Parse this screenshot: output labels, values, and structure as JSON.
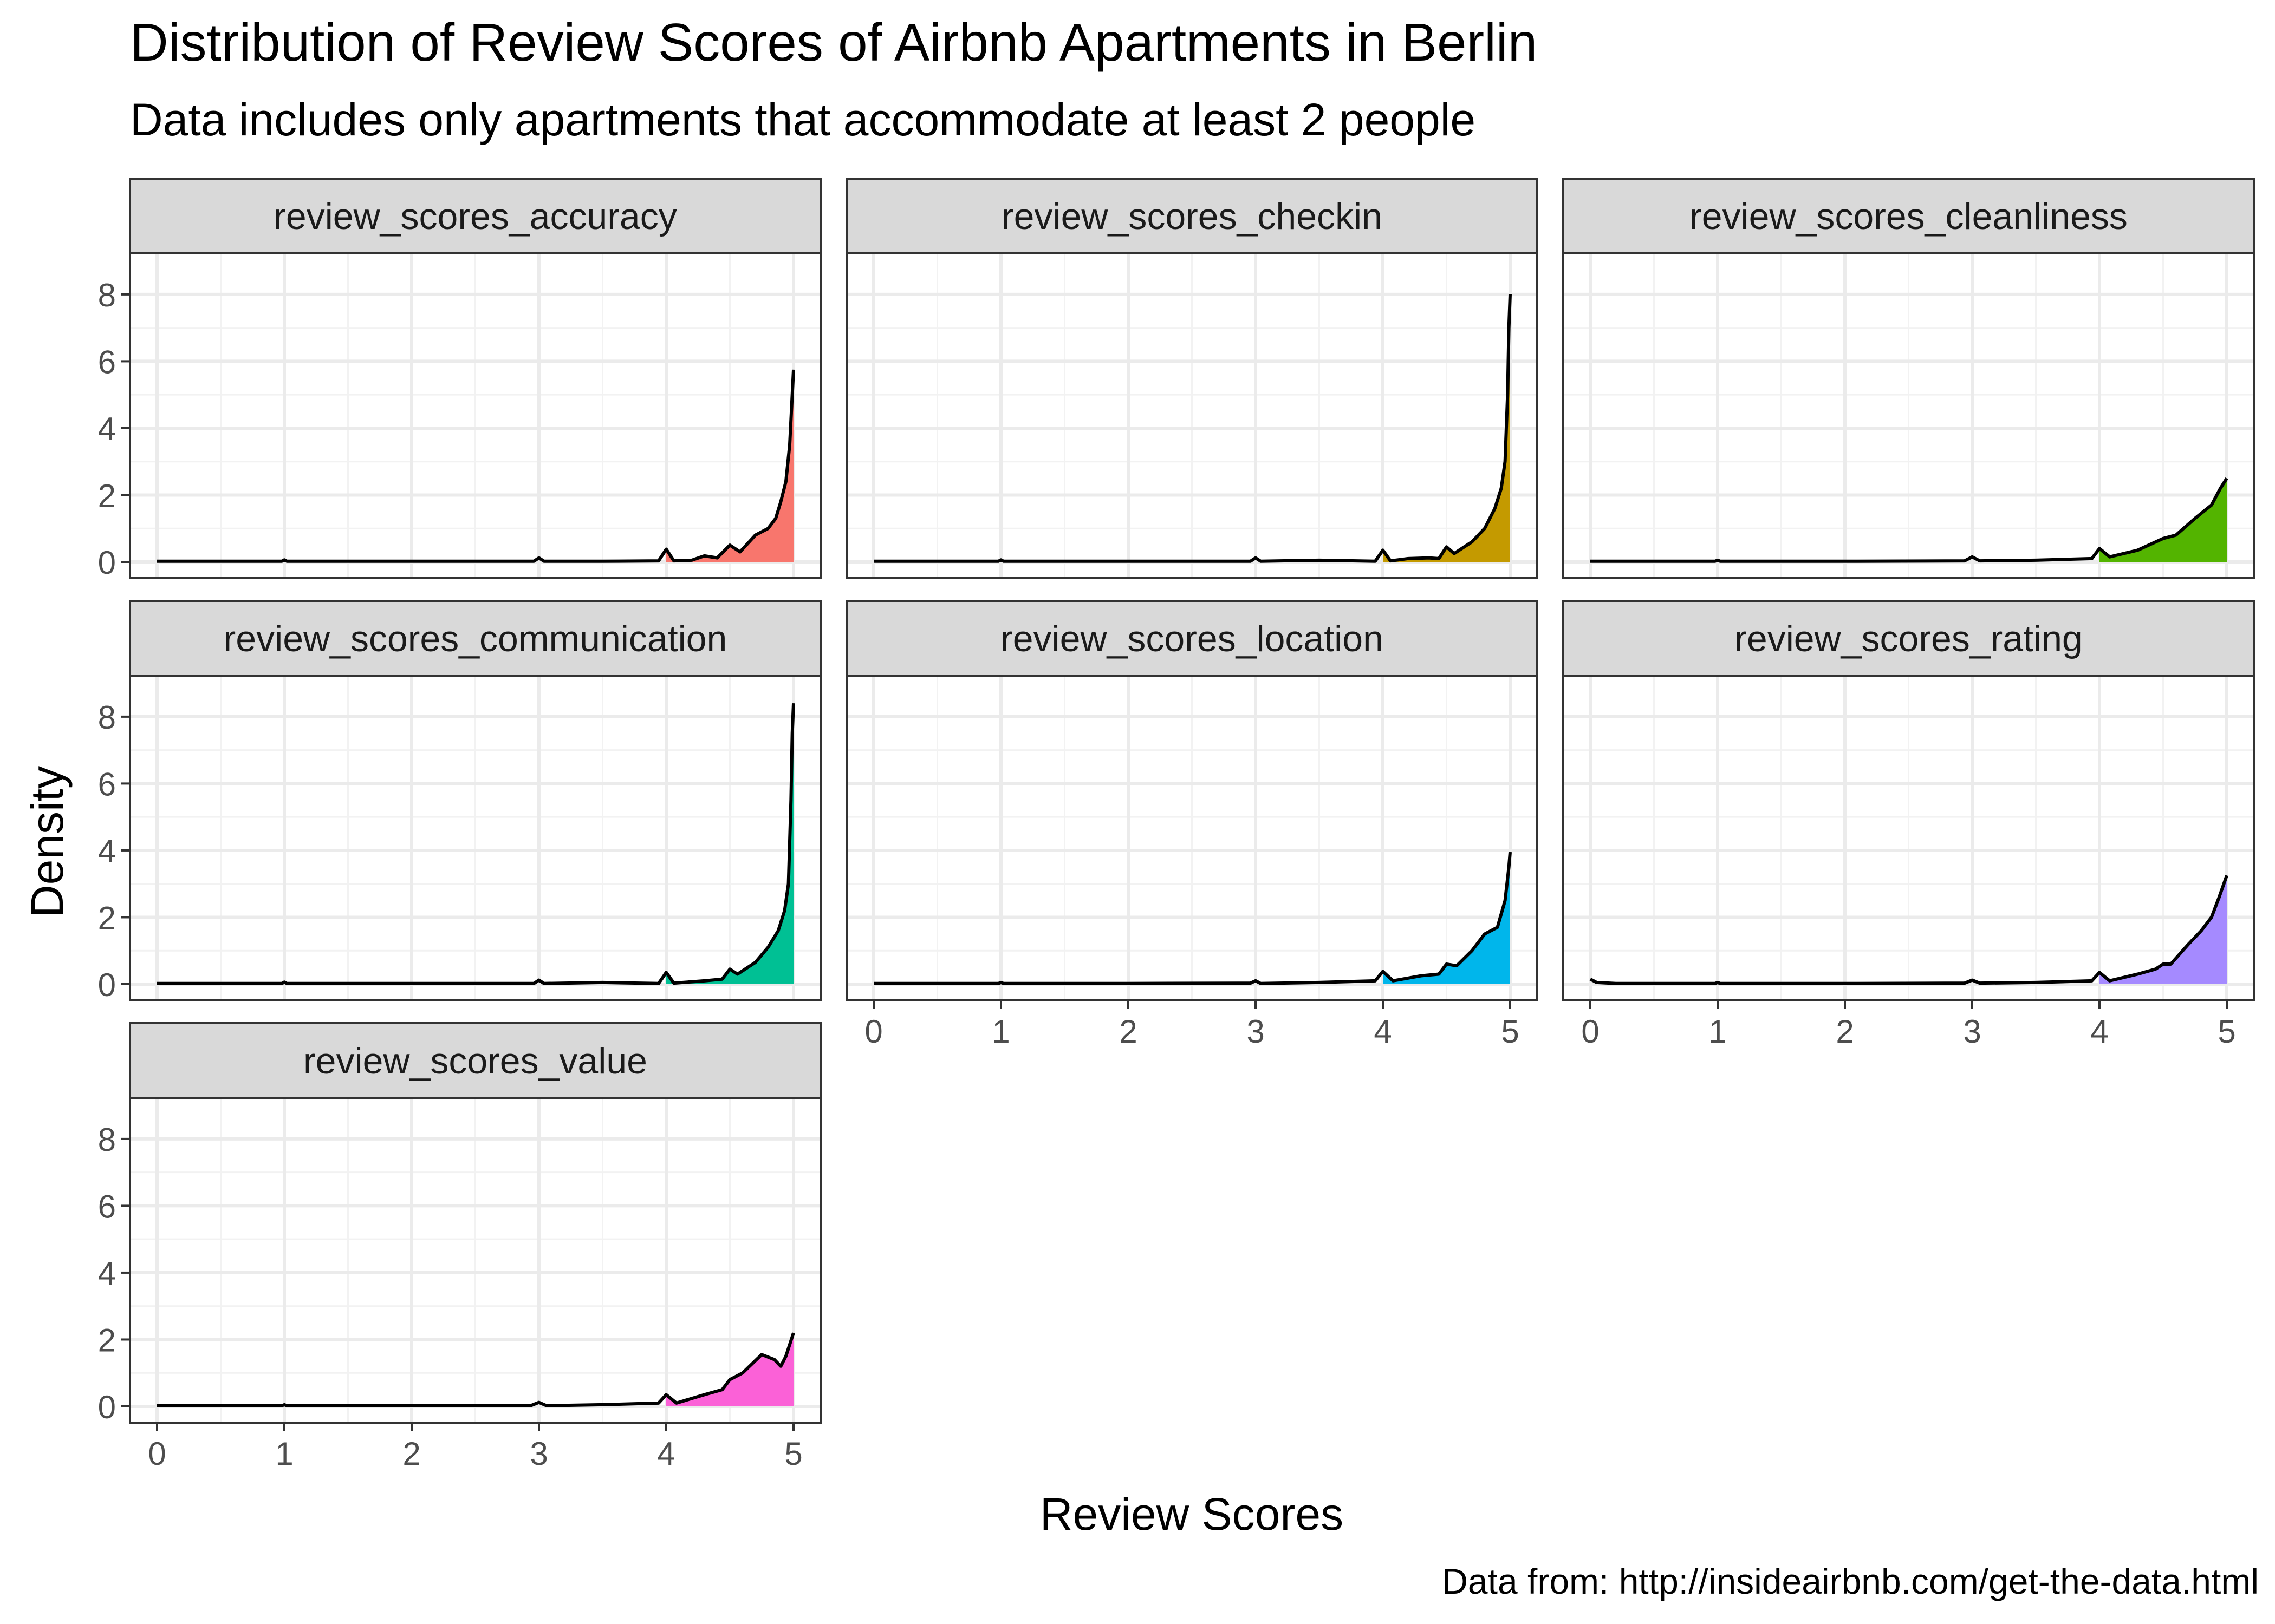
{
  "title": "Distribution of Review Scores of Airbnb Apartments in Berlin",
  "subtitle": "Data includes only apartments that accommodate at least 2 people",
  "caption": "Data from: http://insideairbnb.com/get-the-data.html",
  "chart_data": {
    "type": "area",
    "xlabel": "Review Scores",
    "ylabel": "Density",
    "xlim": [
      0,
      5
    ],
    "ylim": [
      0,
      8.5
    ],
    "x_ticks": [
      "0",
      "1",
      "2",
      "3",
      "4",
      "5"
    ],
    "y_ticks": [
      "0",
      "2",
      "4",
      "6",
      "8"
    ],
    "grid": true,
    "fill_from_x": 4,
    "facets": [
      {
        "name": "review_scores_accuracy",
        "color": "#F8766D",
        "points": [
          [
            0,
            0.02
          ],
          [
            0.98,
            0.02
          ],
          [
            1.0,
            0.06
          ],
          [
            1.02,
            0.02
          ],
          [
            2.0,
            0.02
          ],
          [
            2.96,
            0.02
          ],
          [
            3.0,
            0.12
          ],
          [
            3.04,
            0.02
          ],
          [
            3.5,
            0.02
          ],
          [
            3.94,
            0.03
          ],
          [
            4.0,
            0.38
          ],
          [
            4.06,
            0.03
          ],
          [
            4.2,
            0.05
          ],
          [
            4.3,
            0.18
          ],
          [
            4.4,
            0.12
          ],
          [
            4.5,
            0.5
          ],
          [
            4.58,
            0.3
          ],
          [
            4.7,
            0.8
          ],
          [
            4.8,
            1.0
          ],
          [
            4.86,
            1.3
          ],
          [
            4.9,
            1.8
          ],
          [
            4.94,
            2.4
          ],
          [
            4.97,
            3.5
          ],
          [
            4.99,
            5.0
          ],
          [
            5.0,
            5.75
          ]
        ]
      },
      {
        "name": "review_scores_checkin",
        "color": "#C49A00",
        "points": [
          [
            0,
            0.02
          ],
          [
            0.98,
            0.02
          ],
          [
            1.0,
            0.06
          ],
          [
            1.02,
            0.02
          ],
          [
            2.0,
            0.02
          ],
          [
            2.96,
            0.02
          ],
          [
            3.0,
            0.12
          ],
          [
            3.04,
            0.02
          ],
          [
            3.5,
            0.05
          ],
          [
            3.94,
            0.02
          ],
          [
            4.0,
            0.35
          ],
          [
            4.06,
            0.03
          ],
          [
            4.2,
            0.1
          ],
          [
            4.36,
            0.12
          ],
          [
            4.44,
            0.1
          ],
          [
            4.5,
            0.45
          ],
          [
            4.56,
            0.25
          ],
          [
            4.7,
            0.6
          ],
          [
            4.8,
            1.0
          ],
          [
            4.88,
            1.6
          ],
          [
            4.93,
            2.2
          ],
          [
            4.96,
            3.0
          ],
          [
            4.98,
            5.0
          ],
          [
            4.99,
            7.0
          ],
          [
            5.0,
            8.0
          ]
        ]
      },
      {
        "name": "review_scores_cleanliness",
        "color": "#53B400",
        "points": [
          [
            0,
            0.02
          ],
          [
            0.98,
            0.02
          ],
          [
            1.0,
            0.05
          ],
          [
            1.02,
            0.02
          ],
          [
            2.0,
            0.02
          ],
          [
            2.94,
            0.03
          ],
          [
            3.0,
            0.15
          ],
          [
            3.06,
            0.03
          ],
          [
            3.5,
            0.05
          ],
          [
            3.94,
            0.1
          ],
          [
            4.0,
            0.4
          ],
          [
            4.08,
            0.15
          ],
          [
            4.3,
            0.35
          ],
          [
            4.5,
            0.7
          ],
          [
            4.6,
            0.8
          ],
          [
            4.75,
            1.3
          ],
          [
            4.88,
            1.7
          ],
          [
            4.95,
            2.2
          ],
          [
            5.0,
            2.5
          ]
        ]
      },
      {
        "name": "review_scores_communication",
        "color": "#00C094",
        "points": [
          [
            0,
            0.02
          ],
          [
            0.98,
            0.02
          ],
          [
            1.0,
            0.06
          ],
          [
            1.02,
            0.02
          ],
          [
            2.0,
            0.02
          ],
          [
            2.96,
            0.02
          ],
          [
            3.0,
            0.12
          ],
          [
            3.04,
            0.02
          ],
          [
            3.5,
            0.05
          ],
          [
            3.94,
            0.02
          ],
          [
            4.0,
            0.35
          ],
          [
            4.06,
            0.03
          ],
          [
            4.3,
            0.1
          ],
          [
            4.44,
            0.15
          ],
          [
            4.5,
            0.45
          ],
          [
            4.56,
            0.3
          ],
          [
            4.7,
            0.65
          ],
          [
            4.8,
            1.1
          ],
          [
            4.88,
            1.6
          ],
          [
            4.93,
            2.2
          ],
          [
            4.96,
            3.0
          ],
          [
            4.98,
            5.5
          ],
          [
            4.99,
            7.5
          ],
          [
            5.0,
            8.4
          ]
        ]
      },
      {
        "name": "review_scores_location",
        "color": "#00B6EB",
        "points": [
          [
            0,
            0.02
          ],
          [
            0.98,
            0.02
          ],
          [
            1.0,
            0.05
          ],
          [
            1.02,
            0.02
          ],
          [
            2.0,
            0.02
          ],
          [
            2.96,
            0.03
          ],
          [
            3.0,
            0.1
          ],
          [
            3.04,
            0.02
          ],
          [
            3.5,
            0.05
          ],
          [
            3.94,
            0.1
          ],
          [
            4.0,
            0.38
          ],
          [
            4.08,
            0.1
          ],
          [
            4.3,
            0.25
          ],
          [
            4.44,
            0.3
          ],
          [
            4.5,
            0.6
          ],
          [
            4.58,
            0.55
          ],
          [
            4.7,
            1.0
          ],
          [
            4.8,
            1.5
          ],
          [
            4.9,
            1.7
          ],
          [
            4.96,
            2.5
          ],
          [
            4.99,
            3.5
          ],
          [
            5.0,
            3.95
          ]
        ]
      },
      {
        "name": "review_scores_rating",
        "color": "#A58AFF",
        "points": [
          [
            0,
            0.15
          ],
          [
            0.05,
            0.05
          ],
          [
            0.2,
            0.02
          ],
          [
            0.98,
            0.02
          ],
          [
            1.0,
            0.05
          ],
          [
            1.02,
            0.02
          ],
          [
            2.0,
            0.02
          ],
          [
            2.94,
            0.03
          ],
          [
            3.0,
            0.12
          ],
          [
            3.06,
            0.03
          ],
          [
            3.5,
            0.05
          ],
          [
            3.94,
            0.1
          ],
          [
            4.0,
            0.35
          ],
          [
            4.08,
            0.1
          ],
          [
            4.3,
            0.3
          ],
          [
            4.44,
            0.45
          ],
          [
            4.5,
            0.6
          ],
          [
            4.56,
            0.6
          ],
          [
            4.7,
            1.2
          ],
          [
            4.8,
            1.6
          ],
          [
            4.88,
            2.0
          ],
          [
            4.94,
            2.6
          ],
          [
            5.0,
            3.25
          ]
        ]
      },
      {
        "name": "review_scores_value",
        "color": "#FB61D7",
        "points": [
          [
            0,
            0.02
          ],
          [
            0.98,
            0.02
          ],
          [
            1.0,
            0.05
          ],
          [
            1.02,
            0.02
          ],
          [
            2.0,
            0.02
          ],
          [
            2.94,
            0.03
          ],
          [
            3.0,
            0.12
          ],
          [
            3.06,
            0.02
          ],
          [
            3.5,
            0.05
          ],
          [
            3.94,
            0.1
          ],
          [
            4.0,
            0.35
          ],
          [
            4.08,
            0.1
          ],
          [
            4.3,
            0.35
          ],
          [
            4.44,
            0.5
          ],
          [
            4.5,
            0.8
          ],
          [
            4.6,
            1.0
          ],
          [
            4.75,
            1.55
          ],
          [
            4.85,
            1.4
          ],
          [
            4.9,
            1.2
          ],
          [
            4.94,
            1.5
          ],
          [
            5.0,
            2.2
          ]
        ]
      }
    ]
  }
}
